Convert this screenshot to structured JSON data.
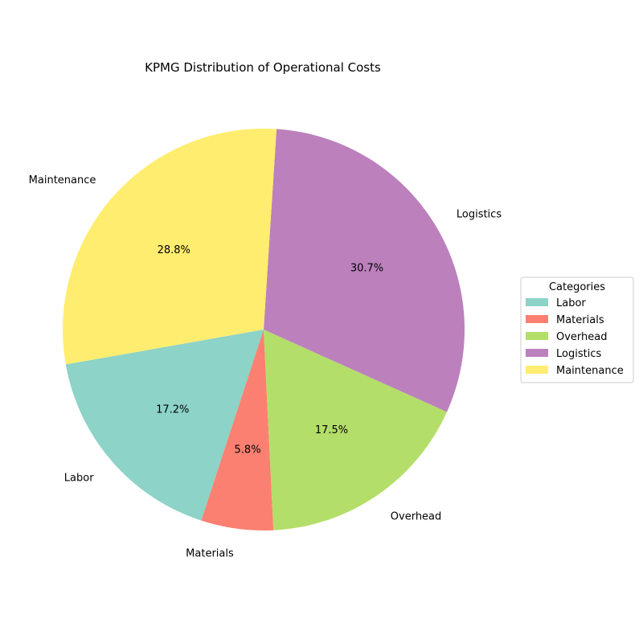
{
  "chart_data": {
    "type": "pie",
    "title": "KPMG Distribution of Operational Costs",
    "categories": [
      "Labor",
      "Materials",
      "Overhead",
      "Logistics",
      "Maintenance"
    ],
    "values": [
      17.2,
      5.8,
      17.5,
      30.7,
      28.8
    ],
    "percent_labels": [
      "17.2%",
      "5.8%",
      "17.5%",
      "30.7%",
      "28.8%"
    ],
    "colors": [
      "#8dd3c7",
      "#fb8072",
      "#b3de69",
      "#bc80bd",
      "#ffed6f"
    ],
    "start_angle_deg": 190,
    "direction": "counterclockwise",
    "legend": {
      "title": "Categories",
      "placement": "center-right",
      "items": [
        "Labor",
        "Materials",
        "Overhead",
        "Logistics",
        "Maintenance"
      ]
    }
  }
}
